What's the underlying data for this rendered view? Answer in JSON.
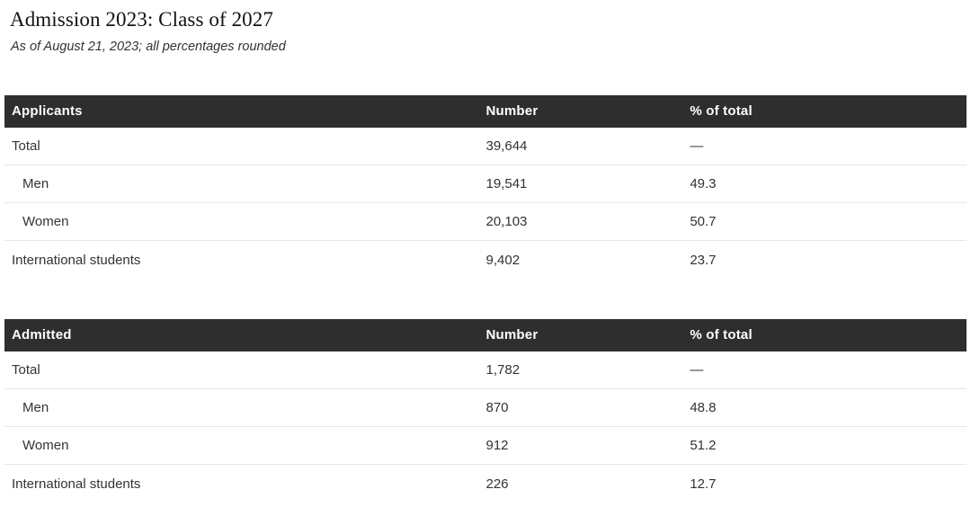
{
  "page": {
    "title": "Admission 2023: Class of 2027",
    "subtitle": "As of August 21, 2023; all percentages rounded"
  },
  "colors": {
    "header_bg": "#2e2e2e",
    "header_text": "#ffffff",
    "body_text": "#333333",
    "divider": "#e7e7e7",
    "title_text": "#121212"
  },
  "tables": [
    {
      "header": {
        "col1": "Applicants",
        "col2": "Number",
        "col3": "% of total"
      },
      "rows": [
        {
          "label": "Total",
          "number": "39,644",
          "pct": "—"
        },
        {
          "label": "Men",
          "number": "19,541",
          "pct": "49.3"
        },
        {
          "label": "Women",
          "number": "20,103",
          "pct": "50.7"
        },
        {
          "label": "International students",
          "number": "9,402",
          "pct": "23.7"
        }
      ]
    },
    {
      "header": {
        "col1": "Admitted",
        "col2": "Number",
        "col3": "% of total"
      },
      "rows": [
        {
          "label": "Total",
          "number": "1,782",
          "pct": "—"
        },
        {
          "label": "Men",
          "number": "870",
          "pct": "48.8"
        },
        {
          "label": "Women",
          "number": "912",
          "pct": "51.2"
        },
        {
          "label": "International students",
          "number": "226",
          "pct": "12.7"
        }
      ]
    }
  ],
  "chart_data": [
    {
      "type": "table",
      "title": "Applicants",
      "columns": [
        "Applicants",
        "Number",
        "% of total"
      ],
      "rows": [
        [
          "Total",
          39644,
          null
        ],
        [
          "Men",
          19541,
          49.3
        ],
        [
          "Women",
          20103,
          50.7
        ],
        [
          "International students",
          9402,
          23.7
        ]
      ],
      "notes": "null % shown as em dash; Men/Women are sub-rows of Total"
    },
    {
      "type": "table",
      "title": "Admitted",
      "columns": [
        "Admitted",
        "Number",
        "% of total"
      ],
      "rows": [
        [
          "Total",
          1782,
          null
        ],
        [
          "Men",
          870,
          48.8
        ],
        [
          "Women",
          912,
          51.2
        ],
        [
          "International students",
          226,
          12.7
        ]
      ],
      "notes": "null % shown as em dash; Men/Women are sub-rows of Total"
    }
  ]
}
